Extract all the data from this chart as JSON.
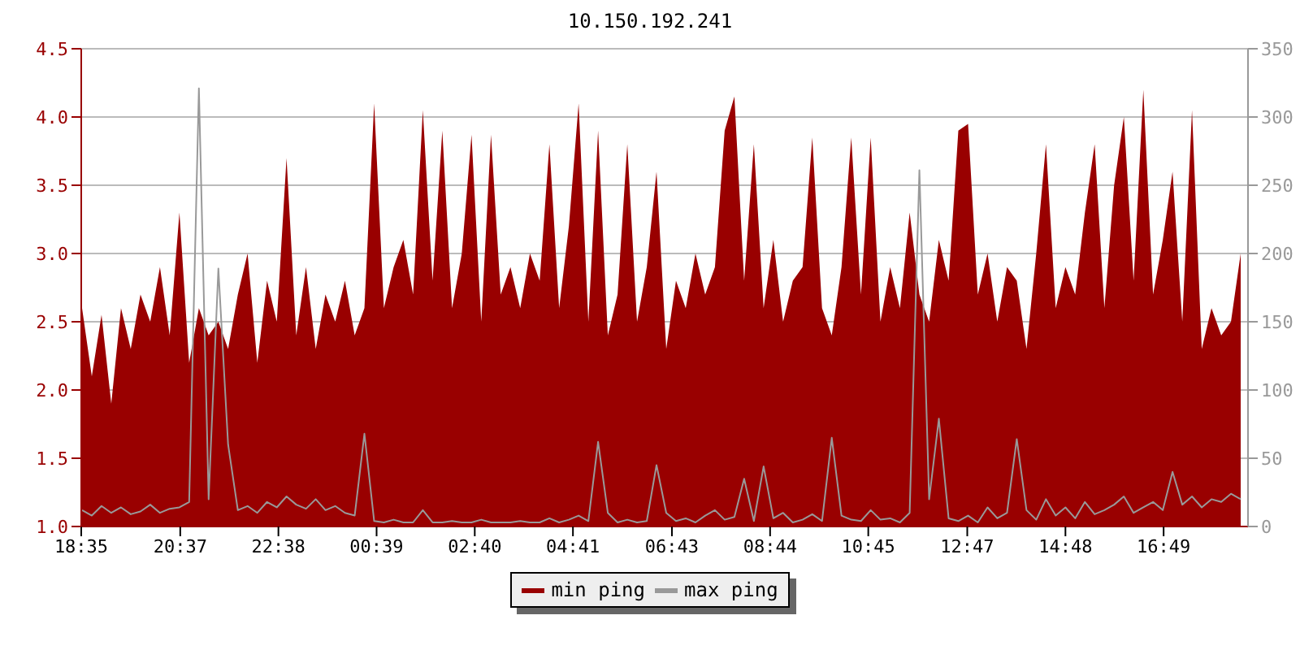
{
  "chart_data": {
    "type": "area",
    "title": "10.150.192.241",
    "x": [
      "--01-01T18:36",
      "--01-01T18:48",
      "--01-01T19:00",
      "--01-01T19:12",
      "--01-01T19:24",
      "--01-01T19:36",
      "--01-01T19:48",
      "--01-01T20:00",
      "--01-01T20:12",
      "--01-01T20:24",
      "--01-01T20:36",
      "--01-01T20:48",
      "--01-01T21:00",
      "--01-01T21:12",
      "--01-01T21:24",
      "--01-01T21:36",
      "--01-01T21:48",
      "--01-01T22:00",
      "--01-01T22:12",
      "--01-01T22:24",
      "--01-01T22:36",
      "--01-01T22:48",
      "--01-01T23:00",
      "--01-01T23:12",
      "--01-01T23:24",
      "--01-01T23:36",
      "--01-01T23:48",
      "--01-02T00:00",
      "--01-02T00:12",
      "--01-02T00:24",
      "--01-02T00:36",
      "--01-02T00:48",
      "--01-02T01:00",
      "--01-02T01:12",
      "--01-02T01:24",
      "--01-02T01:36",
      "--01-02T01:48",
      "--01-02T02:00",
      "--01-02T02:12",
      "--01-02T02:24",
      "--01-02T02:36",
      "--01-02T02:48",
      "--01-02T03:00",
      "--01-02T03:12",
      "--01-02T03:24",
      "--01-02T03:36",
      "--01-02T03:48",
      "--01-02T04:00",
      "--01-02T04:12",
      "--01-02T04:24",
      "--01-02T04:36",
      "--01-02T04:48",
      "--01-02T05:00",
      "--01-02T05:12",
      "--01-02T05:24",
      "--01-02T05:36",
      "--01-02T05:48",
      "--01-02T06:00",
      "--01-02T06:12",
      "--01-02T06:24",
      "--01-02T06:36",
      "--01-02T06:48",
      "--01-02T07:00",
      "--01-02T07:12",
      "--01-02T07:24",
      "--01-02T07:36",
      "--01-02T07:48",
      "--01-02T08:00",
      "--01-02T08:12",
      "--01-02T08:24",
      "--01-02T08:36",
      "--01-02T08:48",
      "--01-02T09:00",
      "--01-02T09:12",
      "--01-02T09:24",
      "--01-02T09:36",
      "--01-02T09:48",
      "--01-02T10:00",
      "--01-02T10:12",
      "--01-02T10:24",
      "--01-02T10:36",
      "--01-02T10:48",
      "--01-02T11:00",
      "--01-02T11:12",
      "--01-02T11:24",
      "--01-02T11:36",
      "--01-02T11:48",
      "--01-02T12:00",
      "--01-02T12:12",
      "--01-02T12:24",
      "--01-02T12:36",
      "--01-02T12:48",
      "--01-02T13:00",
      "--01-02T13:12",
      "--01-02T13:24",
      "--01-02T13:36",
      "--01-02T13:48",
      "--01-02T14:00",
      "--01-02T14:12",
      "--01-02T14:24",
      "--01-02T14:36",
      "--01-02T14:48",
      "--01-02T15:00",
      "--01-02T15:12",
      "--01-02T15:24",
      "--01-02T15:36",
      "--01-02T15:48",
      "--01-02T16:00",
      "--01-02T16:12",
      "--01-02T16:24",
      "--01-02T16:36",
      "--01-02T16:48",
      "--01-02T17:00",
      "--01-02T17:12",
      "--01-02T17:24",
      "--01-02T17:36",
      "--01-02T17:48",
      "--01-02T18:00",
      "--01-02T18:12",
      "--01-02T18:24"
    ],
    "series": [
      {
        "name": "min ping",
        "color": "#990000",
        "values": [
          2.6,
          2.1,
          2.55,
          1.9,
          2.6,
          2.3,
          2.7,
          2.5,
          2.9,
          2.4,
          3.3,
          2.2,
          2.6,
          2.4,
          2.5,
          2.3,
          2.7,
          3.0,
          2.2,
          2.8,
          2.5,
          3.7,
          2.4,
          2.9,
          2.3,
          2.7,
          2.5,
          2.8,
          2.4,
          2.6,
          4.1,
          2.6,
          2.9,
          3.1,
          2.7,
          4.05,
          2.8,
          3.9,
          2.6,
          3.0,
          3.87,
          2.5,
          3.87,
          2.7,
          2.9,
          2.6,
          3.0,
          2.8,
          3.8,
          2.6,
          3.2,
          4.1,
          2.5,
          3.9,
          2.4,
          2.7,
          3.8,
          2.5,
          2.9,
          3.6,
          2.3,
          2.8,
          2.6,
          3.0,
          2.7,
          2.9,
          3.9,
          4.15,
          2.8,
          3.8,
          2.6,
          3.1,
          2.5,
          2.8,
          2.9,
          3.85,
          2.6,
          2.4,
          2.9,
          3.85,
          2.7,
          3.85,
          2.5,
          2.9,
          2.6,
          3.3,
          2.7,
          2.5,
          3.1,
          2.8,
          3.9,
          3.95,
          2.7,
          3.0,
          2.5,
          2.9,
          2.8,
          2.3,
          3.0,
          3.8,
          2.6,
          2.9,
          2.7,
          3.3,
          3.8,
          2.6,
          3.5,
          4.0,
          2.8,
          4.2,
          2.7,
          3.1,
          3.6,
          2.5,
          4.05,
          2.3,
          2.6,
          2.4,
          2.5,
          3.0
        ]
      },
      {
        "name": "max ping",
        "type": "line",
        "axis": "y2",
        "color": "#999999",
        "values": [
          12,
          8,
          15,
          10,
          14,
          9,
          11,
          16,
          10,
          13,
          14,
          18,
          321,
          20,
          189,
          60,
          12,
          15,
          10,
          18,
          14,
          22,
          16,
          13,
          20,
          12,
          15,
          10,
          8,
          68,
          4,
          3,
          5,
          3,
          3,
          12,
          3,
          3,
          4,
          3,
          3,
          5,
          3,
          3,
          3,
          4,
          3,
          3,
          6,
          3,
          5,
          8,
          4,
          62,
          10,
          3,
          5,
          3,
          4,
          45,
          10,
          4,
          6,
          3,
          8,
          12,
          5,
          7,
          35,
          4,
          44,
          6,
          10,
          3,
          5,
          9,
          4,
          65,
          8,
          5,
          4,
          12,
          5,
          6,
          3,
          10,
          261,
          20,
          79,
          6,
          4,
          8,
          3,
          14,
          6,
          10,
          64,
          12,
          5,
          20,
          8,
          14,
          6,
          18,
          9,
          12,
          16,
          22,
          10,
          14,
          18,
          12,
          40,
          16,
          22,
          14,
          20,
          18,
          24,
          20
        ]
      }
    ],
    "xlim": [
      "--01-01T18:35",
      "--01-02T18:33"
    ],
    "xticks": [
      {
        "value": "--01-01T18:35",
        "label": "18:35"
      },
      {
        "value": "--01-01T20:37",
        "label": "20:37"
      },
      {
        "value": "--01-01T22:38",
        "label": "22:38"
      },
      {
        "value": "--01-02T00:39",
        "label": "00:39"
      },
      {
        "value": "--01-02T02:40",
        "label": "02:40"
      },
      {
        "value": "--01-02T04:41",
        "label": "04:41"
      },
      {
        "value": "--01-02T06:43",
        "label": "06:43"
      },
      {
        "value": "--01-02T08:44",
        "label": "08:44"
      },
      {
        "value": "--01-02T10:45",
        "label": "10:45"
      },
      {
        "value": "--01-02T12:47",
        "label": "12:47"
      },
      {
        "value": "--01-02T14:48",
        "label": "14:48"
      },
      {
        "value": "--01-02T16:49",
        "label": "16:49"
      }
    ],
    "ylim": [
      1.0,
      4.5
    ],
    "yticks": [
      {
        "value": 1.0,
        "label": "1.0"
      },
      {
        "value": 1.5,
        "label": "1.5"
      },
      {
        "value": 2.0,
        "label": "2.0"
      },
      {
        "value": 2.5,
        "label": "2.5"
      },
      {
        "value": 3.0,
        "label": "3.0"
      },
      {
        "value": 3.5,
        "label": "3.5"
      },
      {
        "value": 4.0,
        "label": "4.0"
      },
      {
        "value": 4.5,
        "label": "4.5"
      }
    ],
    "y2lim": [
      0,
      350
    ],
    "y2ticks": [
      0,
      50,
      100,
      150,
      200,
      250,
      300,
      350
    ],
    "grid": "y",
    "legend": "bottom"
  }
}
